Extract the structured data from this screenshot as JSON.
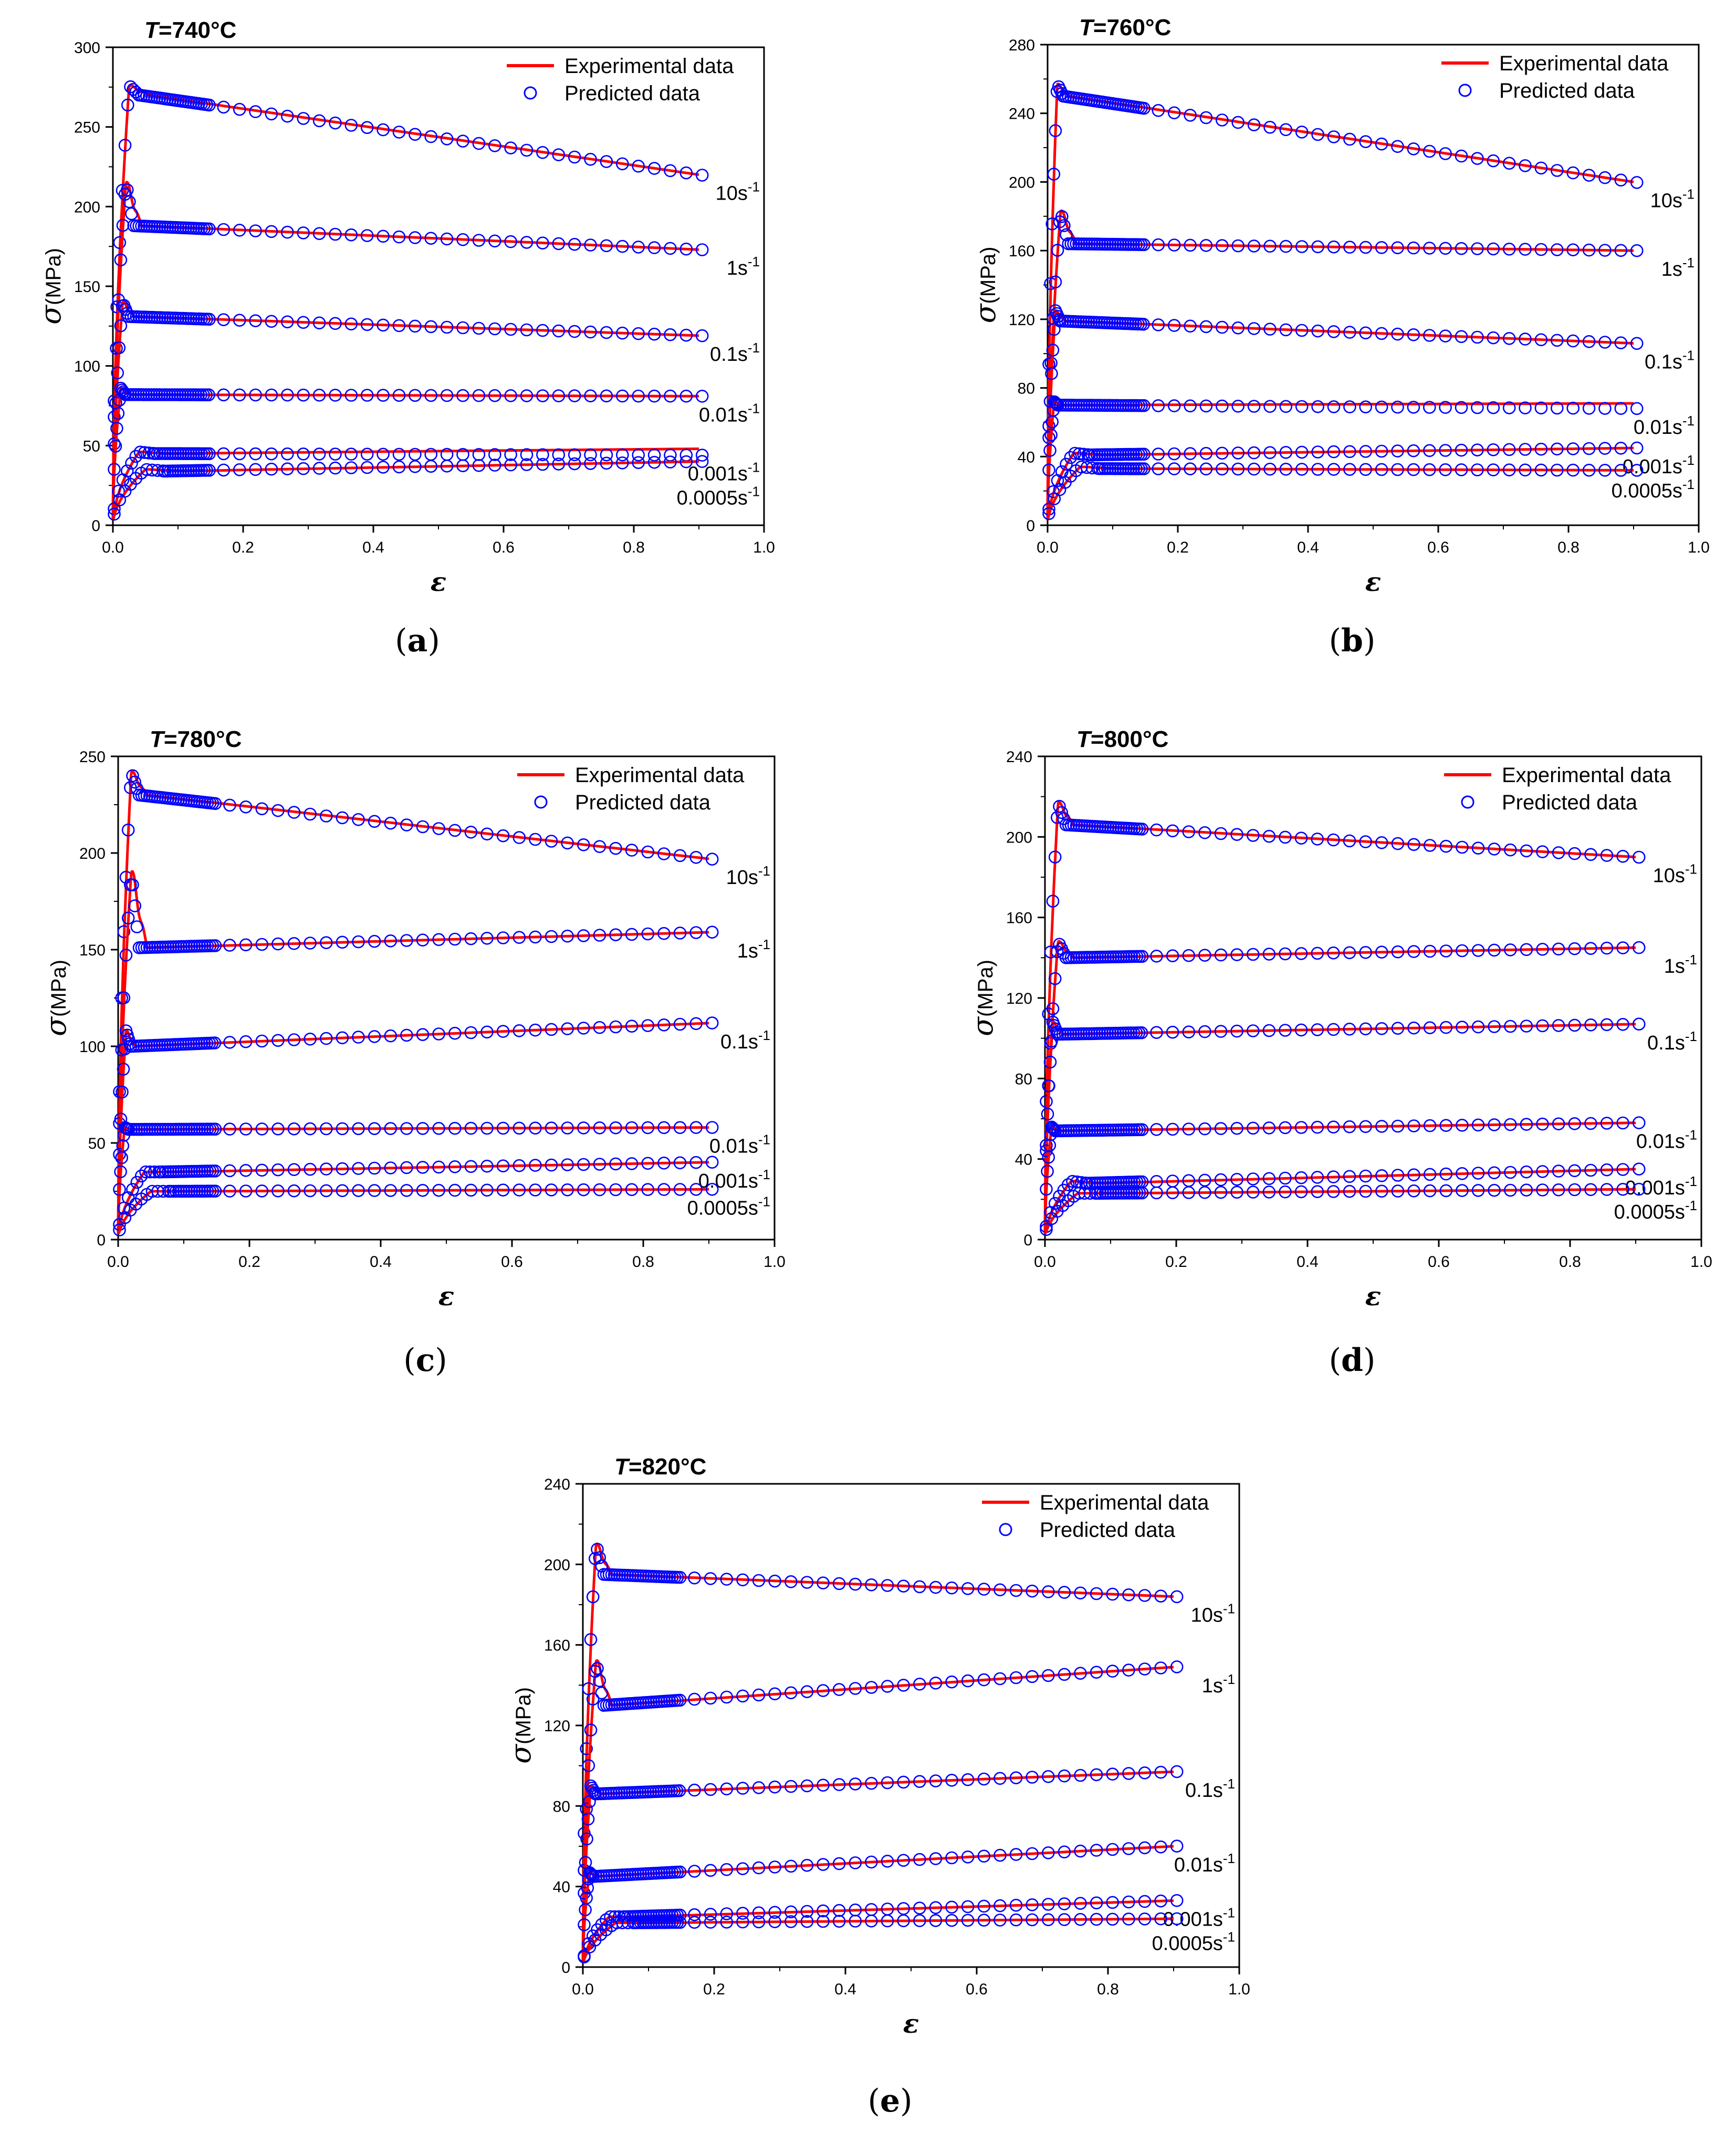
{
  "chart_data": [
    {
      "type": "line",
      "panel_label": "a",
      "title_var": "T",
      "title_value": "=740°C",
      "title": "T=740°C",
      "xlabel": "ε",
      "ylabel_symbol": "σ",
      "ylabel_unit": "(MPa)",
      "xlim": [
        0,
        1.0
      ],
      "ylim": [
        0,
        300
      ],
      "xticks": [
        0,
        0.2,
        0.4,
        0.6,
        0.8,
        1.0
      ],
      "xtick_labels": [
        "0.0",
        "0.2",
        "0.4",
        "0.6",
        "0.8",
        "1.0"
      ],
      "yticks": [
        0,
        50,
        100,
        150,
        200,
        250,
        300
      ],
      "ytick_labels": [
        "0",
        "50",
        "100",
        "150",
        "200",
        "250",
        "300"
      ],
      "legend": [
        "Experimental data",
        "Predicted data"
      ],
      "series": [
        {
          "name": "10s⁻¹",
          "rate_base": "10s",
          "peak_strain": 0.025,
          "peak": 276,
          "start": 270,
          "end": 220
        },
        {
          "name": "1s⁻¹",
          "rate_base": "1s",
          "peak_strain": 0.02,
          "peak": 215,
          "start": 188,
          "end": 173
        },
        {
          "name": "0.1s⁻¹",
          "rate_base": "0.1s",
          "peak_strain": 0.015,
          "peak": 140,
          "start": 131,
          "end": 119
        },
        {
          "name": "0.01s⁻¹",
          "rate_base": "0.01s",
          "peak_strain": 0.012,
          "peak": 86,
          "start": 82,
          "end": 81
        },
        {
          "name": "0.001s⁻¹",
          "rate_base": "0.001s",
          "peak_strain": 0.04,
          "peak": 46,
          "start": 45,
          "end": 44,
          "exp_end": 48
        },
        {
          "name": "0.0005s⁻¹",
          "rate_base": "0.0005s",
          "peak_strain": 0.05,
          "peak": 35,
          "start": 34,
          "end": 40
        }
      ]
    },
    {
      "type": "line",
      "panel_label": "b",
      "title_var": "T",
      "title_value": "=760°C",
      "title": "T=760°C",
      "xlabel": "ε",
      "ylabel_symbol": "σ",
      "ylabel_unit": "(MPa)",
      "xlim": [
        0,
        1.0
      ],
      "ylim": [
        0,
        280
      ],
      "xticks": [
        0,
        0.2,
        0.4,
        0.6,
        0.8,
        1.0
      ],
      "xtick_labels": [
        "0.0",
        "0.2",
        "0.4",
        "0.6",
        "0.8",
        "1.0"
      ],
      "yticks": [
        0,
        40,
        80,
        120,
        160,
        200,
        240,
        280
      ],
      "ytick_labels": [
        "0",
        "40",
        "80",
        "120",
        "160",
        "200",
        "240",
        "280"
      ],
      "legend": [
        "Experimental data",
        "Predicted data"
      ],
      "series": [
        {
          "name": "10s⁻¹",
          "rate_base": "10s",
          "peak_strain": 0.015,
          "peak": 257,
          "start": 250,
          "end": 200
        },
        {
          "name": "1s⁻¹",
          "rate_base": "1s",
          "peak_strain": 0.02,
          "peak": 183,
          "start": 164,
          "end": 160
        },
        {
          "name": "0.1s⁻¹",
          "rate_base": "0.1s",
          "peak_strain": 0.012,
          "peak": 125,
          "start": 119,
          "end": 106
        },
        {
          "name": "0.01s⁻¹",
          "rate_base": "0.01s",
          "peak_strain": 0.01,
          "peak": 72,
          "start": 70,
          "end": 68,
          "exp_end": 71
        },
        {
          "name": "0.001s⁻¹",
          "rate_base": "0.001s",
          "peak_strain": 0.04,
          "peak": 42,
          "start": 41,
          "end": 45
        },
        {
          "name": "0.0005s⁻¹",
          "rate_base": "0.0005s",
          "peak_strain": 0.05,
          "peak": 34,
          "start": 33,
          "end": 32
        }
      ]
    },
    {
      "type": "line",
      "panel_label": "c",
      "title_var": "T",
      "title_value": "=780°C",
      "title": "T=780°C",
      "xlabel": "ε",
      "ylabel_symbol": "σ",
      "ylabel_unit": "(MPa)",
      "xlim": [
        0,
        1.0
      ],
      "ylim": [
        0,
        250
      ],
      "xticks": [
        0,
        0.2,
        0.4,
        0.6,
        0.8,
        1.0
      ],
      "xtick_labels": [
        "0.0",
        "0.2",
        "0.4",
        "0.6",
        "0.8",
        "1.0"
      ],
      "yticks": [
        0,
        50,
        100,
        150,
        200,
        250
      ],
      "ytick_labels": [
        "0",
        "50",
        "100",
        "150",
        "200",
        "250"
      ],
      "legend": [
        "Experimental data",
        "Predicted data"
      ],
      "series": [
        {
          "name": "10s⁻¹",
          "rate_base": "10s",
          "peak_strain": 0.02,
          "peak": 242,
          "start": 230,
          "end": 197
        },
        {
          "name": "1s⁻¹",
          "rate_base": "1s",
          "peak_strain": 0.02,
          "peak": 190,
          "start": 151,
          "end": 159
        },
        {
          "name": "0.1s⁻¹",
          "rate_base": "0.1s",
          "peak_strain": 0.012,
          "peak": 108,
          "start": 100,
          "end": 112
        },
        {
          "name": "0.01s⁻¹",
          "rate_base": "0.01s",
          "peak_strain": 0.01,
          "peak": 58,
          "start": 57,
          "end": 58
        },
        {
          "name": "0.001s⁻¹",
          "rate_base": "0.001s",
          "peak_strain": 0.04,
          "peak": 35,
          "start": 35,
          "end": 40
        },
        {
          "name": "0.0005s⁻¹",
          "rate_base": "0.0005s",
          "peak_strain": 0.05,
          "peak": 25,
          "start": 25,
          "end": 26
        }
      ]
    },
    {
      "type": "line",
      "panel_label": "d",
      "title_var": "T",
      "title_value": "=800°C",
      "title": "T=800°C",
      "xlabel": "ε",
      "ylabel_symbol": "σ",
      "ylabel_unit": "(MPa)",
      "xlim": [
        0,
        1.0
      ],
      "ylim": [
        0,
        240
      ],
      "xticks": [
        0,
        0.2,
        0.4,
        0.6,
        0.8,
        1.0
      ],
      "xtick_labels": [
        "0.0",
        "0.2",
        "0.4",
        "0.6",
        "0.8",
        "1.0"
      ],
      "yticks": [
        0,
        40,
        80,
        120,
        160,
        200,
        240
      ],
      "ytick_labels": [
        "0",
        "40",
        "80",
        "120",
        "160",
        "200",
        "240"
      ],
      "legend": [
        "Experimental data",
        "Predicted data"
      ],
      "series": [
        {
          "name": "10s⁻¹",
          "rate_base": "10s",
          "peak_strain": 0.02,
          "peak": 217,
          "start": 206,
          "end": 190
        },
        {
          "name": "1s⁻¹",
          "rate_base": "1s",
          "peak_strain": 0.02,
          "peak": 148,
          "start": 140,
          "end": 145
        },
        {
          "name": "0.1s⁻¹",
          "rate_base": "0.1s",
          "peak_strain": 0.012,
          "peak": 108,
          "start": 102,
          "end": 107
        },
        {
          "name": "0.01s⁻¹",
          "rate_base": "0.01s",
          "peak_strain": 0.01,
          "peak": 56,
          "start": 54,
          "end": 58
        },
        {
          "name": "0.001s⁻¹",
          "rate_base": "0.001s",
          "peak_strain": 0.04,
          "peak": 29,
          "start": 28,
          "end": 35
        },
        {
          "name": "0.0005s⁻¹",
          "rate_base": "0.0005s",
          "peak_strain": 0.05,
          "peak": 23,
          "start": 23,
          "end": 25
        }
      ]
    },
    {
      "type": "line",
      "panel_label": "e",
      "title_var": "T",
      "title_value": "=820°C",
      "title": "T=820°C",
      "xlabel": "ε",
      "ylabel_symbol": "σ",
      "ylabel_unit": "(MPa)",
      "xlim": [
        0,
        1.0
      ],
      "ylim": [
        0,
        240
      ],
      "xticks": [
        0,
        0.2,
        0.4,
        0.6,
        0.8,
        1.0
      ],
      "xtick_labels": [
        "0.0",
        "0.2",
        "0.4",
        "0.6",
        "0.8",
        "1.0"
      ],
      "yticks": [
        0,
        40,
        80,
        120,
        160,
        200,
        240
      ],
      "ytick_labels": [
        "0",
        "40",
        "80",
        "120",
        "160",
        "200",
        "240"
      ],
      "legend": [
        "Experimental data",
        "Predicted data"
      ],
      "series": [
        {
          "name": "10s⁻¹",
          "rate_base": "10s",
          "peak_strain": 0.02,
          "peak": 210,
          "start": 195,
          "end": 184
        },
        {
          "name": "1s⁻¹",
          "rate_base": "1s",
          "peak_strain": 0.02,
          "peak": 152,
          "start": 130,
          "end": 149
        },
        {
          "name": "0.1s⁻¹",
          "rate_base": "0.1s",
          "peak_strain": 0.012,
          "peak": 90,
          "start": 86,
          "end": 97
        },
        {
          "name": "0.01s⁻¹",
          "rate_base": "0.01s",
          "peak_strain": 0.01,
          "peak": 47,
          "start": 45,
          "end": 60
        },
        {
          "name": "0.001s⁻¹",
          "rate_base": "0.001s",
          "peak_strain": 0.04,
          "peak": 25,
          "start": 25,
          "end": 33
        },
        {
          "name": "0.0005s⁻¹",
          "rate_base": "0.0005s",
          "peak_strain": 0.05,
          "peak": 22,
          "start": 22,
          "end": 24
        }
      ]
    }
  ],
  "colors": {
    "experimental": "#ff0000",
    "predicted": "#0000ff",
    "axis": "#000000"
  }
}
